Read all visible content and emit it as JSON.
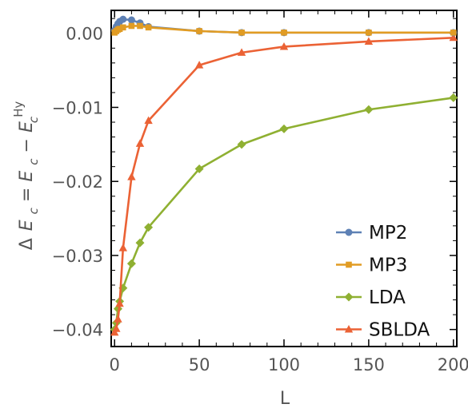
{
  "chart_data": {
    "type": "line",
    "xlabel": "L",
    "ylabel_parts": [
      "Δ",
      "E",
      "c",
      "=",
      "E",
      "c",
      "−",
      "E",
      "c",
      "Hy"
    ],
    "xlim": [
      -2,
      202
    ],
    "ylim": [
      -0.0423,
      0.0031
    ],
    "xticks": [
      0,
      50,
      100,
      150,
      200
    ],
    "yticks": [
      0.0,
      -0.01,
      -0.02,
      -0.03,
      -0.04
    ],
    "xtick_labels": [
      "0",
      "50",
      "100",
      "150",
      "200"
    ],
    "ytick_labels": [
      "0.00",
      "−0.01",
      "−0.02",
      "−0.03",
      "−0.04"
    ],
    "grid": false,
    "legend_position": "bottom-right",
    "series": [
      {
        "name": "MP2",
        "color": "#5E81B5",
        "marker": "circle",
        "x": [
          0,
          1,
          2,
          3,
          5,
          10,
          15,
          20,
          50,
          75,
          100,
          150,
          200
        ],
        "y": [
          0.0004,
          0.0009,
          0.0013,
          0.0016,
          0.0019,
          0.0018,
          0.0014,
          0.0009,
          0.0003,
          0.0001,
          0.0001,
          0.0001,
          0.0001
        ]
      },
      {
        "name": "MP3",
        "color": "#E19C24",
        "marker": "square",
        "x": [
          0,
          1,
          2,
          3,
          5,
          10,
          15,
          20,
          50,
          75,
          100,
          150,
          200
        ],
        "y": [
          0.0001,
          0.0003,
          0.0005,
          0.0006,
          0.0008,
          0.001,
          0.001,
          0.0008,
          0.0003,
          0.0001,
          0.0001,
          0.0001,
          0.0001
        ]
      },
      {
        "name": "LDA",
        "color": "#8FB032",
        "marker": "diamond",
        "x": [
          0,
          1,
          2,
          3,
          5,
          10,
          15,
          20,
          50,
          75,
          100,
          150,
          200
        ],
        "y": [
          -0.04,
          -0.0391,
          -0.0372,
          -0.0362,
          -0.0344,
          -0.0311,
          -0.0283,
          -0.0262,
          -0.0183,
          -0.015,
          -0.0129,
          -0.0103,
          -0.0087
        ]
      },
      {
        "name": "SBLDA",
        "color": "#EB6235",
        "marker": "triangle",
        "x": [
          0,
          1,
          2,
          3,
          5,
          10,
          15,
          20,
          50,
          75,
          100,
          150,
          200
        ],
        "y": [
          -0.0404,
          -0.0399,
          -0.0386,
          -0.0365,
          -0.029,
          -0.0194,
          -0.0149,
          -0.0118,
          -0.0043,
          -0.0026,
          -0.0018,
          -0.0011,
          -0.0006
        ]
      }
    ]
  }
}
